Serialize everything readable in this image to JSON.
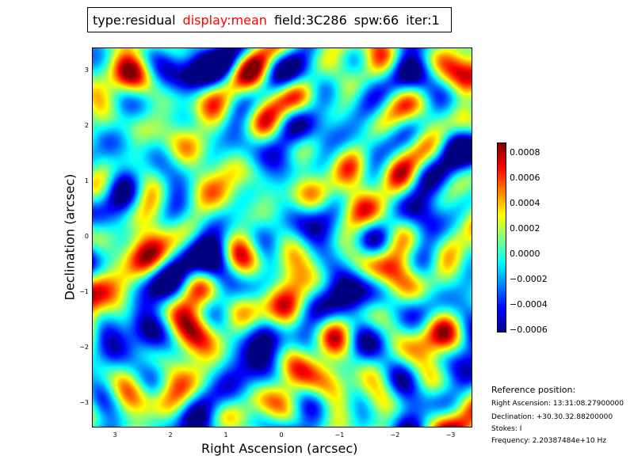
{
  "title": {
    "type": "type:residual",
    "display": "display:mean",
    "field": "field:3C286",
    "spw": "spw:66",
    "iter": "iter:1",
    "display_color": "#ff0000"
  },
  "chart_data": {
    "type": "heatmap",
    "xlabel": "Right Ascension (arcsec)",
    "ylabel": "Declination (arcsec)",
    "xticks": [
      "3",
      "2",
      "1",
      "0",
      "−1",
      "−2",
      "−3"
    ],
    "xtick_values": [
      3,
      2,
      1,
      0,
      -1,
      -2,
      -3
    ],
    "yticks": [
      "3",
      "2",
      "1",
      "0",
      "−1",
      "−2",
      "−3"
    ],
    "ytick_values": [
      3,
      2,
      1,
      0,
      -1,
      -2,
      -3
    ],
    "xlim": [
      3.45,
      -3.45
    ],
    "ylim": [
      -3.45,
      3.45
    ],
    "colormap": "jet",
    "clim": [
      -0.00062,
      0.00088
    ],
    "colorbar_ticks": [
      "0.0008",
      "0.0006",
      "0.0004",
      "0.0002",
      "0.0000",
      "−0.0002",
      "−0.0004",
      "−0.0006"
    ],
    "colorbar_tick_values": [
      0.0008,
      0.0006,
      0.0004,
      0.0002,
      0,
      -0.0002,
      -0.0004,
      -0.0006
    ]
  },
  "reference": {
    "heading": "Reference position:",
    "ra": "Right Ascension: 13:31:08.27900000",
    "dec": "Declination: +30.30.32.88200000",
    "stokes": "Stokes: I",
    "freq": "Frequency: 2.20387484e+10 Hz"
  }
}
